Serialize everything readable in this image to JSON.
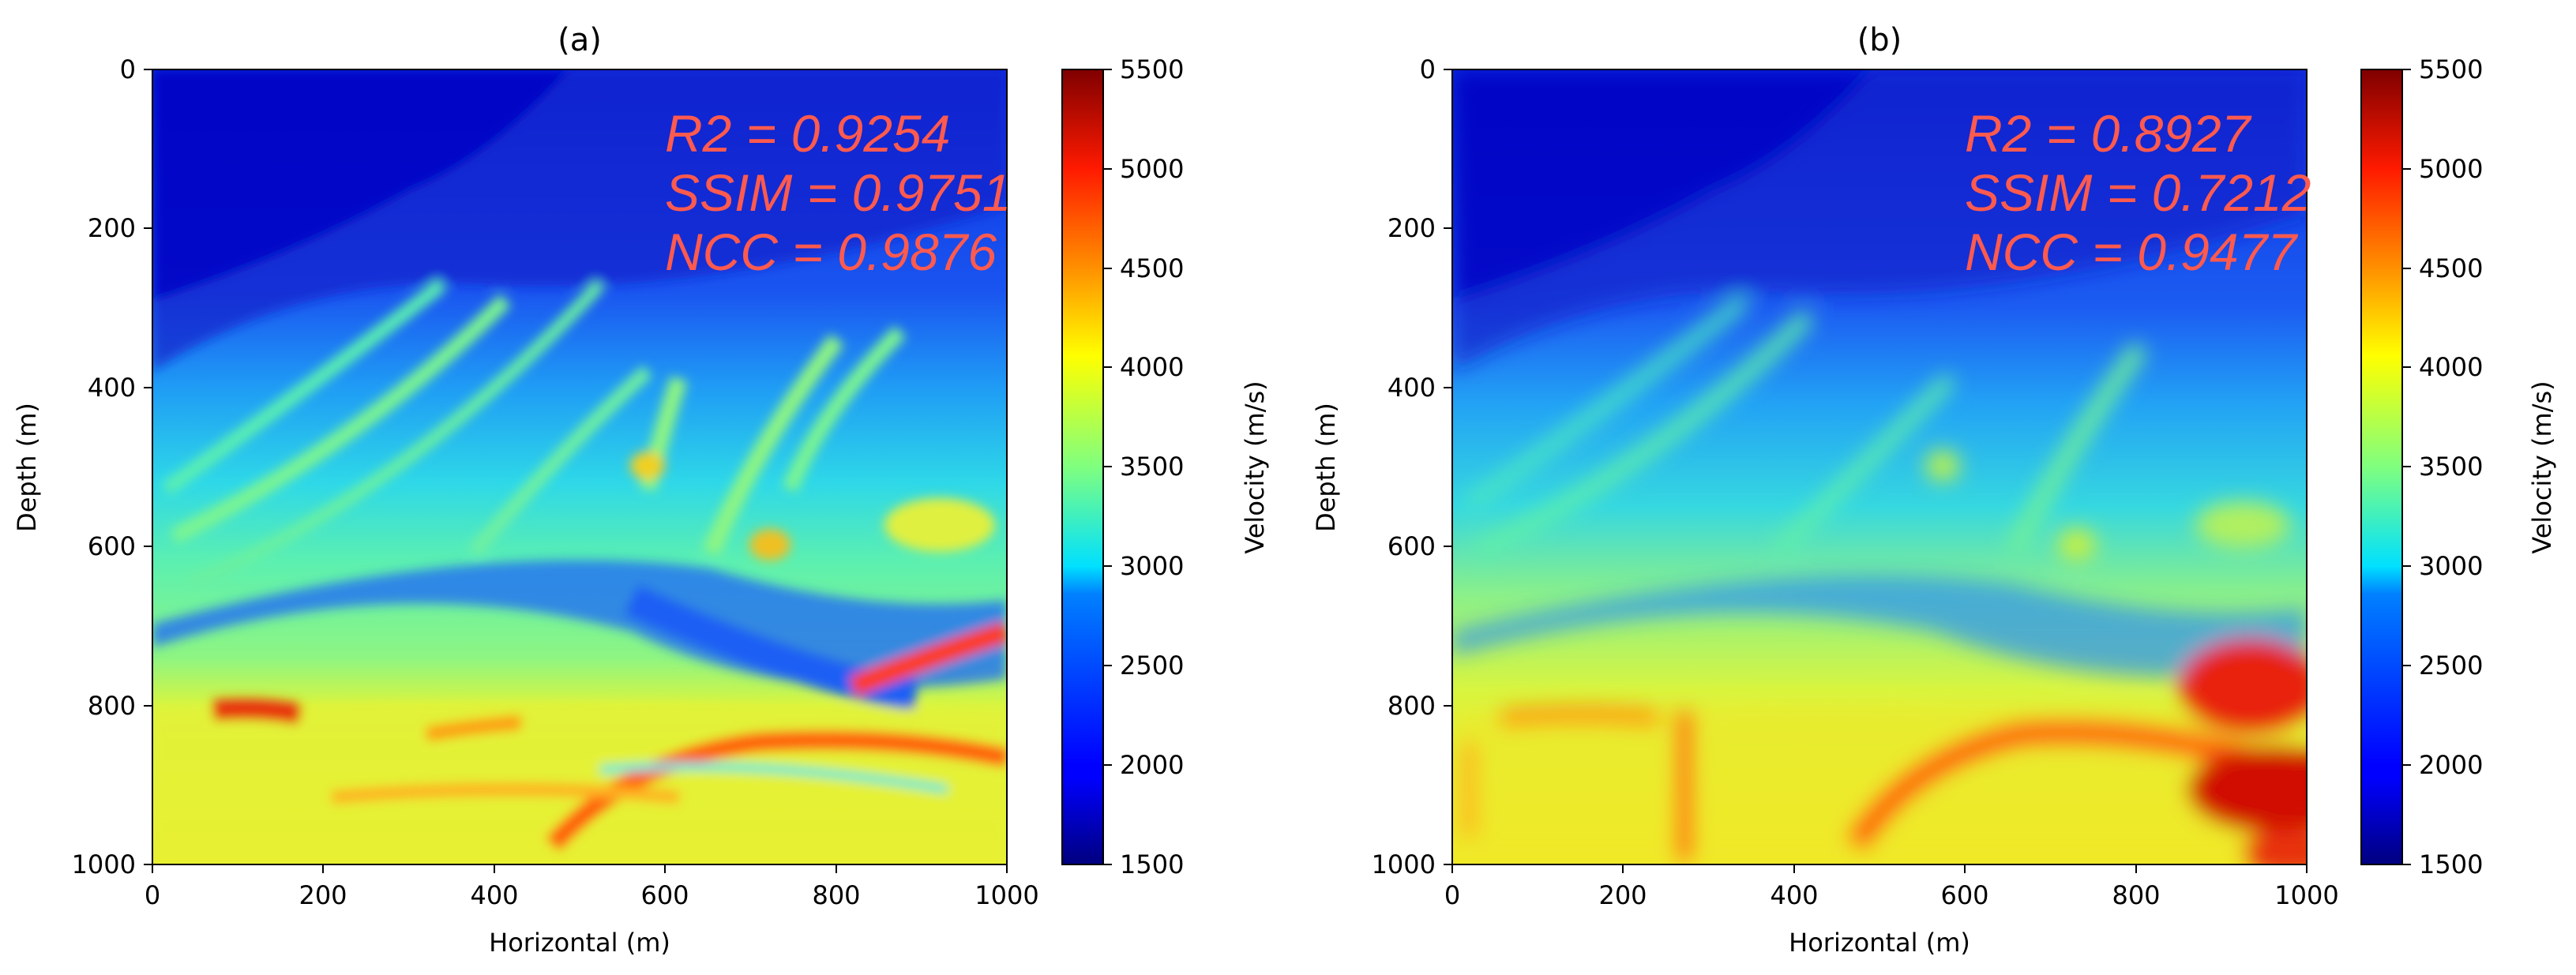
{
  "chart_data": [
    {
      "type": "heatmap",
      "title": "(a)",
      "xlabel": "Horizontal (m)",
      "ylabel": "Depth (m)",
      "xlim": [
        0,
        1000
      ],
      "ylim": [
        1000,
        0
      ],
      "xticks": [
        "0",
        "200",
        "400",
        "600",
        "800",
        "1000"
      ],
      "yticks": [
        "0",
        "200",
        "400",
        "600",
        "800",
        "1000"
      ],
      "colorbar": {
        "label": "Velocity (m/s)",
        "range": [
          1500,
          5500
        ],
        "ticks": [
          "1500",
          "2000",
          "2500",
          "3000",
          "3500",
          "4000",
          "4500",
          "5000",
          "5500"
        ],
        "colormap": "jet"
      },
      "annotations": [
        "R2 = 0.9254",
        "SSIM = 0.9751",
        "NCC = 0.9876"
      ],
      "annotation_color": "#ff5a4e",
      "velocity_field_description_points": {
        "depth": [
          0,
          200,
          400,
          600,
          800,
          1000
        ],
        "approx_velocity": [
          1800,
          2000,
          3000,
          3300,
          4000,
          4200
        ]
      }
    },
    {
      "type": "heatmap",
      "title": "(b)",
      "xlabel": "Horizontal (m)",
      "ylabel": "Depth (m)",
      "xlim": [
        0,
        1000
      ],
      "ylim": [
        1000,
        0
      ],
      "xticks": [
        "0",
        "200",
        "400",
        "600",
        "800",
        "1000"
      ],
      "yticks": [
        "0",
        "200",
        "400",
        "600",
        "800",
        "1000"
      ],
      "colorbar": {
        "label": "Velocity (m/s)",
        "range": [
          1500,
          5500
        ],
        "ticks": [
          "1500",
          "2000",
          "2500",
          "3000",
          "3500",
          "4000",
          "4500",
          "5000",
          "5500"
        ],
        "colormap": "jet"
      },
      "annotations": [
        "R2 = 0.8927",
        "SSIM = 0.7212",
        "NCC = 0.9477"
      ],
      "annotation_color": "#ff5a4e",
      "velocity_field_description_points": {
        "depth": [
          0,
          200,
          400,
          600,
          800,
          1000
        ],
        "approx_velocity": [
          1800,
          2000,
          3000,
          3300,
          4000,
          4300
        ]
      }
    }
  ]
}
